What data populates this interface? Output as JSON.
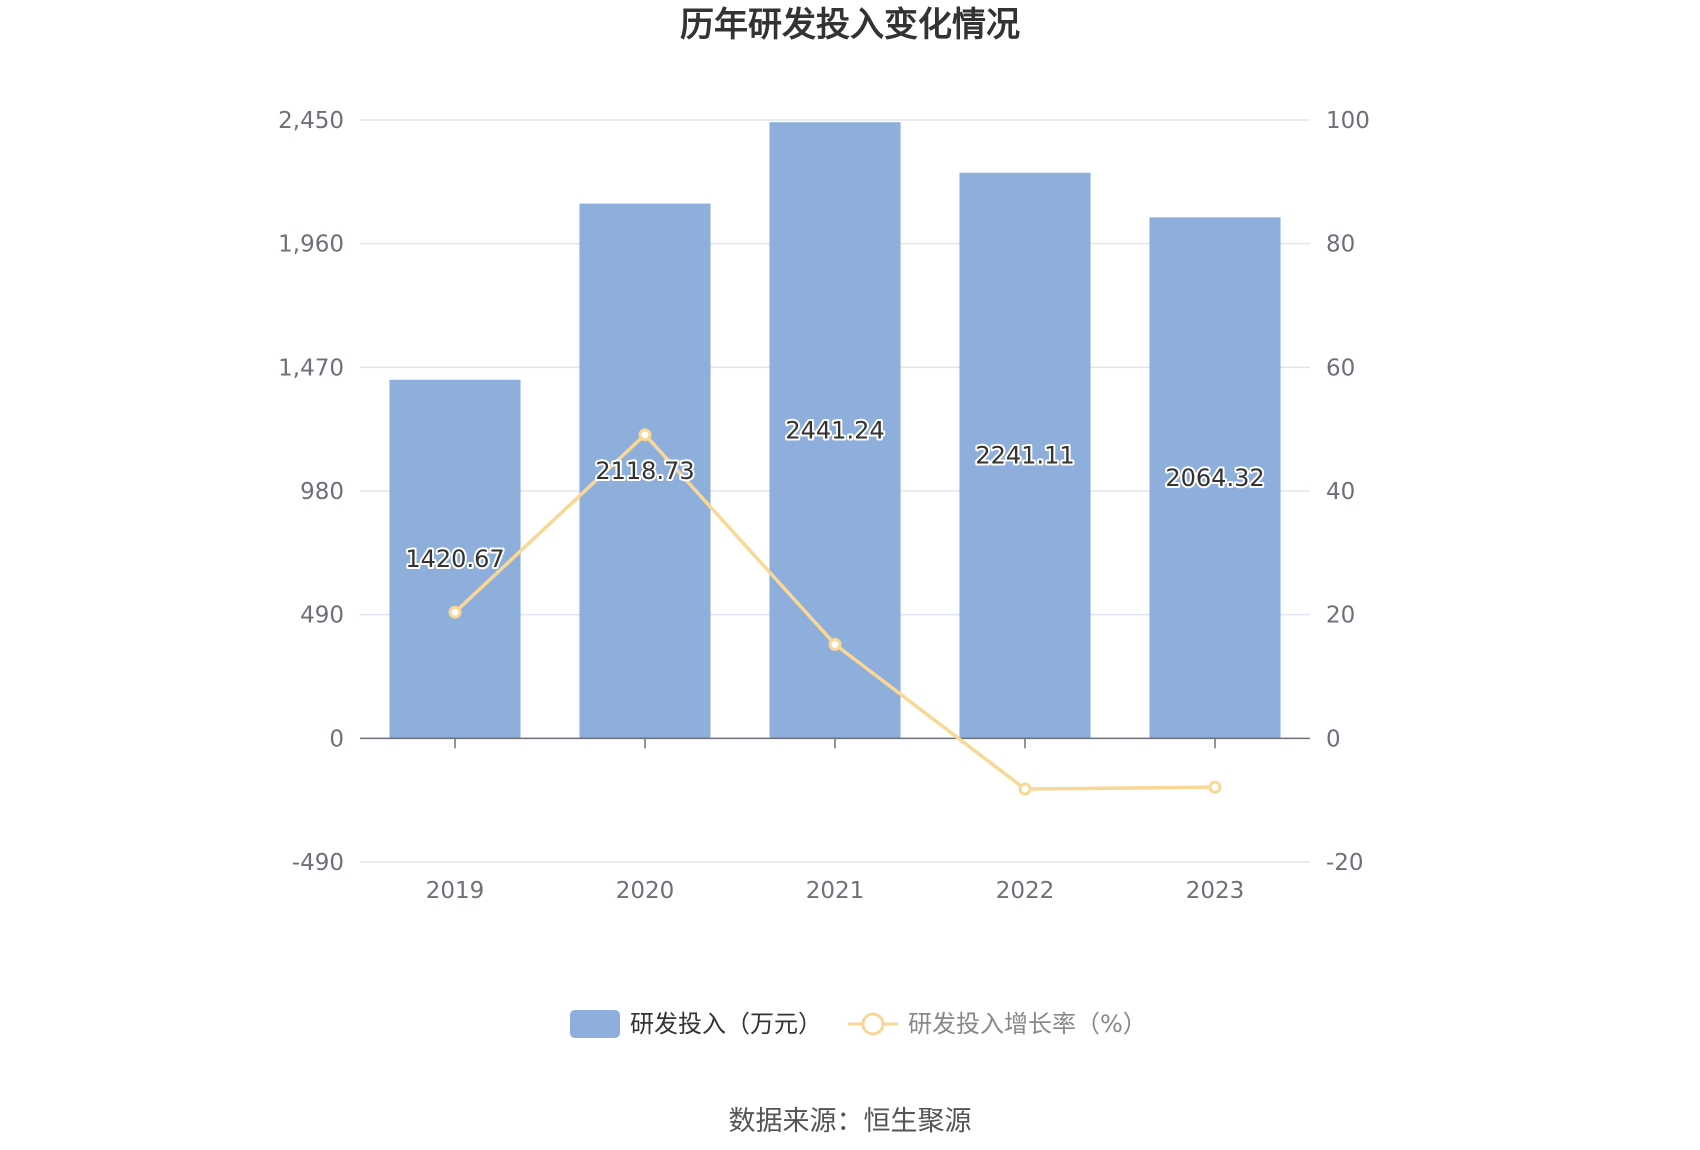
{
  "chart_data": {
    "type": "bar",
    "title": "历年研发投入变化情况",
    "categories": [
      "2019",
      "2020",
      "2021",
      "2022",
      "2023"
    ],
    "series": [
      {
        "name": "研发投入（万元）",
        "type": "bar",
        "axis": "left",
        "color": "#8eaedb",
        "values": [
          1420.67,
          2118.73,
          2441.24,
          2241.11,
          2064.32
        ],
        "labels": [
          "1420.67",
          "2118.73",
          "2441.24",
          "2241.11",
          "2064.32"
        ]
      },
      {
        "name": "研发投入增长率（%）",
        "type": "line",
        "axis": "right",
        "color": "#f9d796",
        "values": [
          20.4,
          49.1,
          15.2,
          -8.2,
          -7.9
        ]
      }
    ],
    "y_left": {
      "ylim": [
        -490,
        2450
      ],
      "ticks": [
        "2,450",
        "1,960",
        "1,470",
        "980",
        "490",
        "0",
        "-490"
      ],
      "tick_values": [
        2450,
        1960,
        1470,
        980,
        490,
        0,
        -490
      ]
    },
    "y_right": {
      "ylim": [
        -20,
        100
      ],
      "ticks": [
        "100",
        "80",
        "60",
        "40",
        "20",
        "0",
        "-20"
      ],
      "tick_values": [
        100,
        80,
        60,
        40,
        20,
        0,
        -20
      ]
    },
    "grid": true,
    "legend_position": "bottom-center"
  },
  "source": "数据来源：恒生聚源"
}
